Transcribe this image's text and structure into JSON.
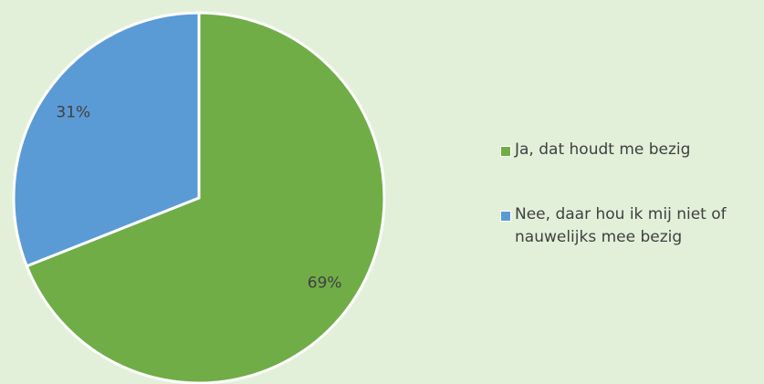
{
  "chart_data": {
    "type": "pie",
    "categories": [
      "Ja, dat houdt me bezig",
      "Nee, daar hou ik mij niet of nauwelijks mee bezig"
    ],
    "values": [
      69,
      31
    ],
    "value_labels": [
      "69%",
      "31%"
    ],
    "colors": [
      "#70ad47",
      "#5b9bd5"
    ],
    "legend": "right"
  }
}
